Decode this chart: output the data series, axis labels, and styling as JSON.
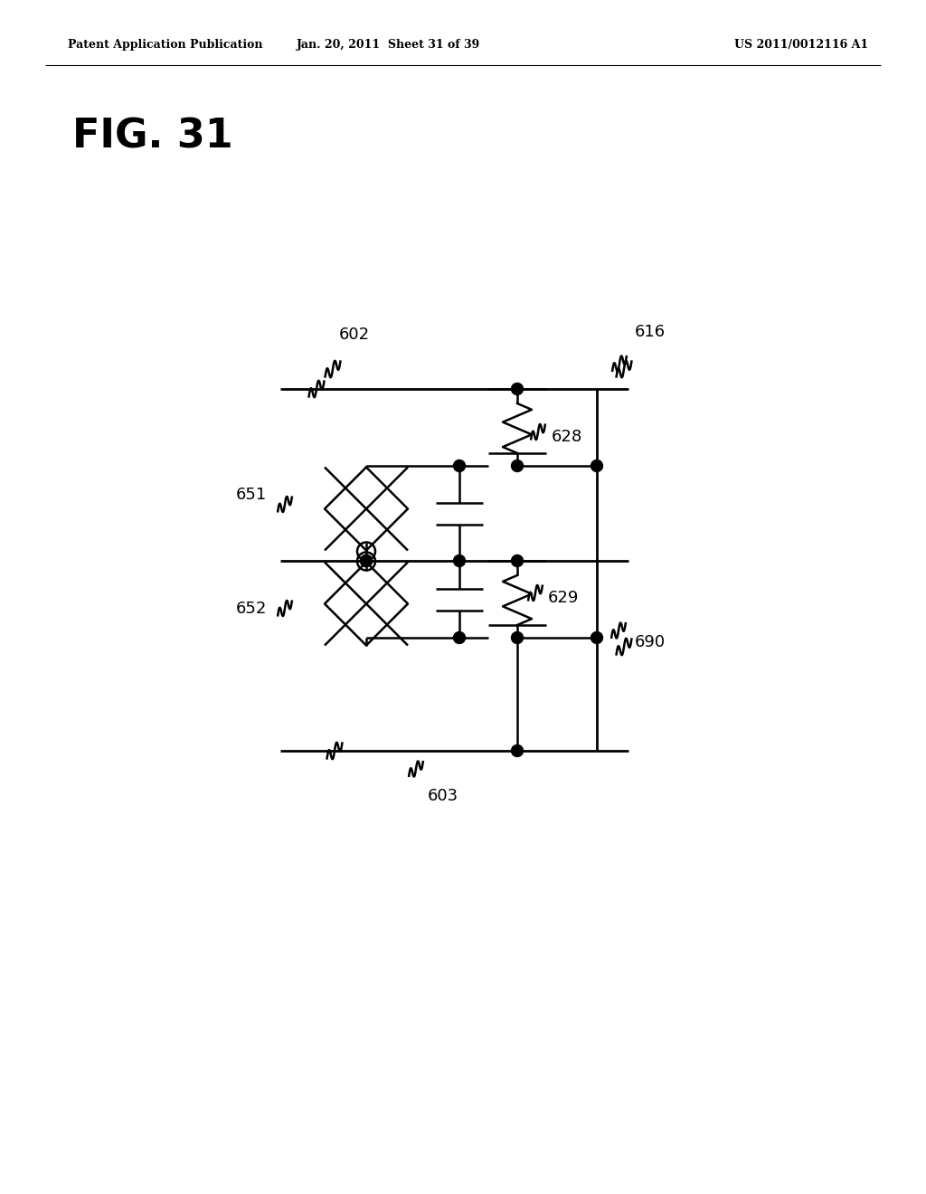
{
  "bg_color": "#ffffff",
  "line_color": "#000000",
  "header_left": "Patent Application Publication",
  "header_center": "Jan. 20, 2011  Sheet 31 of 39",
  "header_right": "US 2011/0012116 A1",
  "fig_title": "FIG. 31",
  "labels": [
    "602",
    "603",
    "616",
    "628",
    "629",
    "651",
    "652",
    "690"
  ]
}
